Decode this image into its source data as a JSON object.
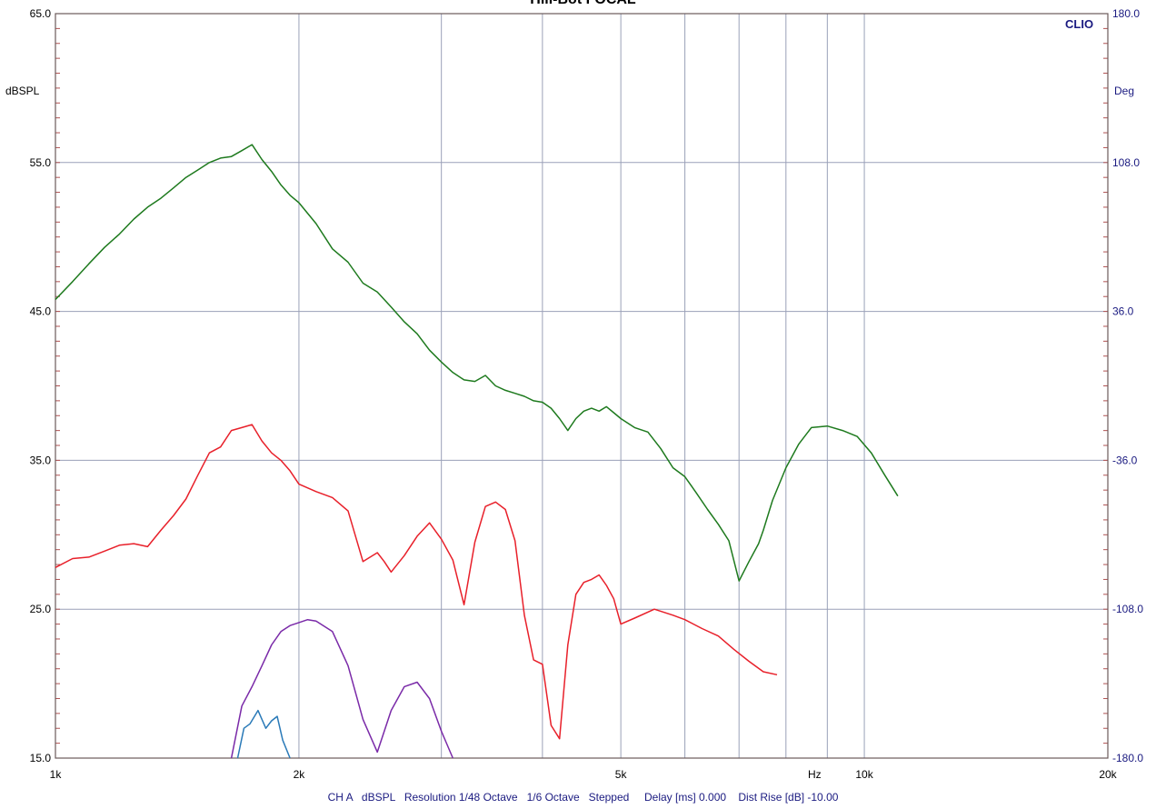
{
  "header": {
    "title": "Hill-Bot FOCAL",
    "brand": "CLIO"
  },
  "footer": {
    "text": "CH A   dBSPL   Resolution 1/48 Octave   1/6 Octave   Stepped     Delay [ms] 0.000    Dist Rise [dB] -10.00"
  },
  "chart_data": {
    "type": "line",
    "title": "Hill-Bot FOCAL",
    "xlabel": "Hz",
    "ylabel": "dBSPL",
    "y2label": "Deg",
    "xscale": "log",
    "xlim": [
      1000,
      20000
    ],
    "ylim": [
      15,
      65
    ],
    "y2lim": [
      -180,
      180
    ],
    "grid": true,
    "x_ticks": [
      {
        "value": 1000,
        "label": "1k"
      },
      {
        "value": 2000,
        "label": "2k"
      },
      {
        "value": 5000,
        "label": "5k"
      },
      {
        "value": 10000,
        "label": "10k"
      },
      {
        "value": 20000,
        "label": "20k"
      }
    ],
    "x_gridlines": [
      2000,
      3000,
      4000,
      5000,
      6000,
      7000,
      8000,
      9000,
      10000
    ],
    "y_ticks": [
      {
        "value": 15,
        "label": "15.0"
      },
      {
        "value": 25,
        "label": "25.0"
      },
      {
        "value": 35,
        "label": "35.0"
      },
      {
        "value": 45,
        "label": "45.0"
      },
      {
        "value": 55,
        "label": "55.0"
      },
      {
        "value": 65,
        "label": "65.0"
      }
    ],
    "y2_ticks": [
      {
        "value": -180,
        "label": "-180.0"
      },
      {
        "value": -108,
        "label": "-108.0"
      },
      {
        "value": -36,
        "label": "-36.0"
      },
      {
        "value": 36,
        "label": "36.0"
      },
      {
        "value": 108,
        "label": "108.0"
      },
      {
        "value": 180,
        "label": "180.0"
      }
    ],
    "series": [
      {
        "color": "#1e7a1e",
        "x": [
          1000,
          1050,
          1100,
          1150,
          1200,
          1250,
          1300,
          1350,
          1400,
          1450,
          1500,
          1550,
          1600,
          1650,
          1700,
          1750,
          1800,
          1850,
          1900,
          1950,
          2000,
          2100,
          2200,
          2300,
          2400,
          2500,
          2600,
          2700,
          2800,
          2900,
          3000,
          3100,
          3200,
          3300,
          3400,
          3500,
          3600,
          3700,
          3800,
          3900,
          4000,
          4100,
          4200,
          4300,
          4400,
          4500,
          4600,
          4700,
          4800,
          4900,
          5000,
          5200,
          5400,
          5600,
          5800,
          6000,
          6200,
          6400,
          6600,
          6800,
          7000,
          7200,
          7400,
          7500,
          7700,
          8000,
          8300,
          8600,
          9000,
          9400,
          9800,
          10200,
          10600,
          11000
        ],
        "y": [
          45.8,
          47.0,
          48.2,
          49.3,
          50.2,
          51.2,
          52.0,
          52.6,
          53.3,
          54.0,
          54.5,
          55.0,
          55.3,
          55.4,
          55.8,
          56.2,
          55.2,
          54.4,
          53.5,
          52.8,
          52.3,
          50.9,
          49.2,
          48.3,
          46.9,
          46.3,
          45.3,
          44.3,
          43.5,
          42.4,
          41.6,
          40.9,
          40.4,
          40.3,
          40.7,
          40.0,
          39.7,
          39.5,
          39.3,
          39.0,
          38.9,
          38.5,
          37.8,
          37.0,
          37.8,
          38.3,
          38.5,
          38.3,
          38.6,
          38.2,
          37.8,
          37.2,
          36.9,
          35.8,
          34.5,
          33.9,
          32.8,
          31.7,
          30.7,
          29.6,
          26.9,
          28.2,
          29.4,
          30.3,
          32.3,
          34.5,
          36.1,
          37.2,
          37.3,
          37.0,
          36.6,
          35.5,
          34.0,
          32.6
        ]
      },
      {
        "color": "#e8202a",
        "x": [
          1000,
          1050,
          1100,
          1150,
          1200,
          1250,
          1300,
          1350,
          1400,
          1450,
          1500,
          1550,
          1600,
          1650,
          1700,
          1750,
          1800,
          1850,
          1900,
          1950,
          2000,
          2100,
          2200,
          2300,
          2400,
          2500,
          2550,
          2600,
          2700,
          2800,
          2900,
          3000,
          3100,
          3200,
          3300,
          3400,
          3500,
          3600,
          3700,
          3800,
          3900,
          4000,
          4100,
          4200,
          4300,
          4400,
          4500,
          4600,
          4700,
          4800,
          4900,
          5000,
          5200,
          5500,
          5800,
          6000,
          6300,
          6600,
          6900,
          7200,
          7500,
          7800
        ],
        "y": [
          27.8,
          28.4,
          28.5,
          28.9,
          29.3,
          29.4,
          29.2,
          30.3,
          31.3,
          32.4,
          34.0,
          35.5,
          35.9,
          37.0,
          37.2,
          37.4,
          36.3,
          35.5,
          35.0,
          34.3,
          33.4,
          32.9,
          32.5,
          31.6,
          28.2,
          28.8,
          28.2,
          27.5,
          28.6,
          29.9,
          30.8,
          29.7,
          28.3,
          25.3,
          29.5,
          31.9,
          32.2,
          31.7,
          29.6,
          24.6,
          21.6,
          21.3,
          17.2,
          16.3,
          22.6,
          26.0,
          26.8,
          27.0,
          27.3,
          26.6,
          25.7,
          24.0,
          24.4,
          25.0,
          24.6,
          24.3,
          23.7,
          23.2,
          22.3,
          21.5,
          20.8,
          20.6
        ]
      },
      {
        "color": "#7a2aa8",
        "x": [
          1650,
          1700,
          1750,
          1800,
          1850,
          1900,
          1950,
          2000,
          2050,
          2100,
          2200,
          2300,
          2400,
          2500,
          2600,
          2700,
          2800,
          2900,
          3000,
          3100
        ],
        "y": [
          15.0,
          18.5,
          19.8,
          21.2,
          22.6,
          23.5,
          23.9,
          24.1,
          24.3,
          24.2,
          23.5,
          21.2,
          17.6,
          15.4,
          18.2,
          19.8,
          20.1,
          19.0,
          16.8,
          15.0
        ]
      },
      {
        "color": "#2a7ab8",
        "x": [
          1680,
          1710,
          1740,
          1780,
          1820,
          1850,
          1880,
          1910,
          1950
        ],
        "y": [
          15.0,
          17.0,
          17.3,
          18.2,
          17.0,
          17.5,
          17.8,
          16.2,
          15.0
        ]
      }
    ]
  }
}
